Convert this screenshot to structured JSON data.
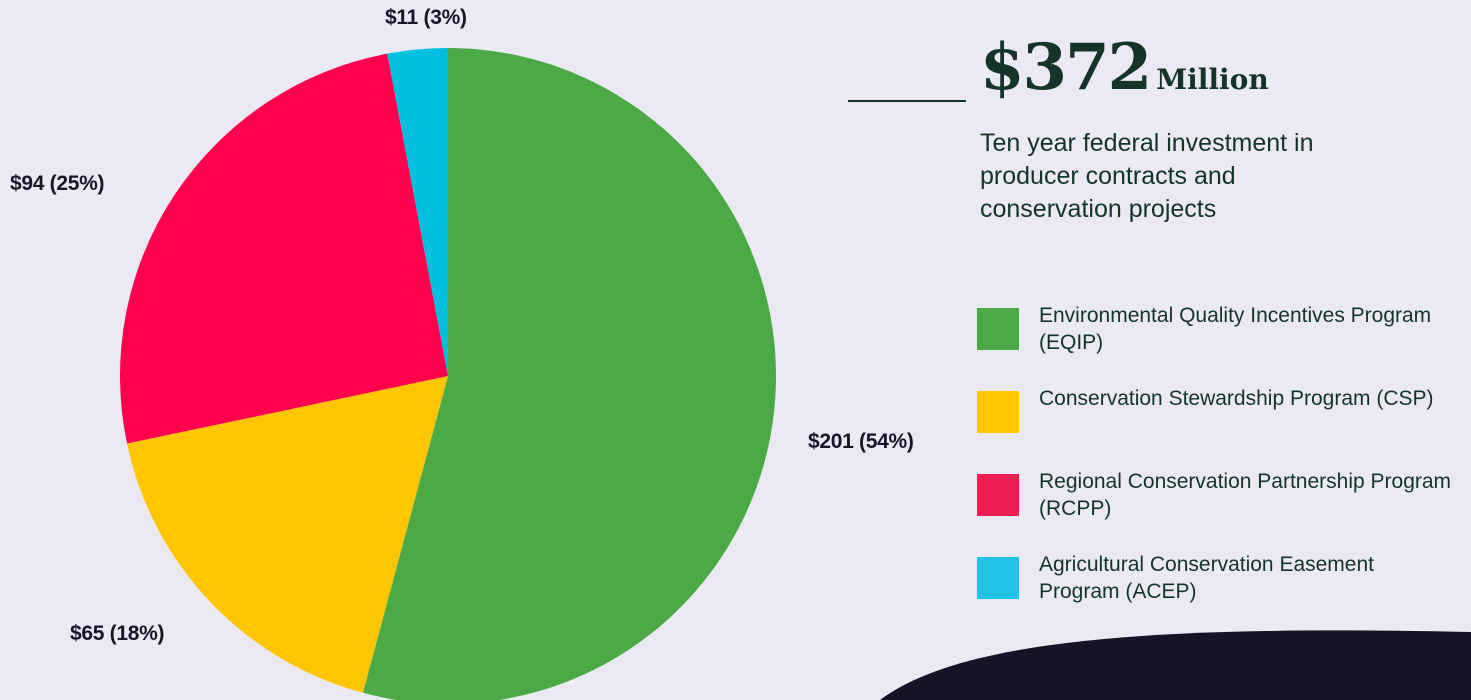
{
  "chart_data": {
    "type": "pie",
    "total": "$372",
    "total_unit": "Million",
    "subtitle": "Ten year federal investment in producer contracts and conservation projects",
    "slices": [
      {
        "name": "Environmental Quality Incentives Program (EQIP)",
        "value": 201,
        "percent": 54,
        "label": "$201 (54%)",
        "color": "#4caa46"
      },
      {
        "name": "Conservation Stewardship Program (CSP)",
        "value": 65,
        "percent": 18,
        "label": "$65 (18%)",
        "color": "#ffc600"
      },
      {
        "name": "Regional Conservation Partnership Program (RCPP)",
        "value": 94,
        "percent": 25,
        "label": "$94 (25%)",
        "color": "#ff004f"
      },
      {
        "name": "Agricultural Conservation Easement Program (ACEP)",
        "value": 11,
        "percent": 3,
        "label": "$11 (3%)",
        "color": "#00bfdf"
      }
    ],
    "legend_position": "right",
    "start_angle": "top, clockwise"
  },
  "colors": {
    "background": "#ebe9f3",
    "text_dark": "#14342a",
    "corner_shape": "#141426"
  }
}
